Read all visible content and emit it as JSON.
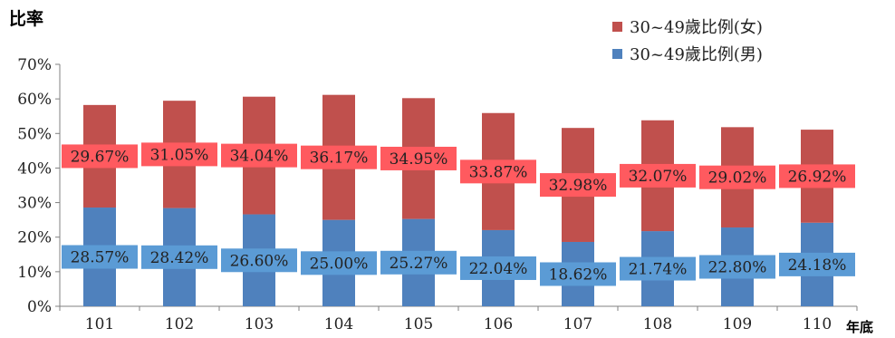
{
  "chart_data": {
    "type": "bar",
    "stacked": true,
    "categories": [
      "101",
      "102",
      "103",
      "104",
      "105",
      "106",
      "107",
      "108",
      "109",
      "110"
    ],
    "series": [
      {
        "name": "30~49歲比例(男)",
        "color": "#4f81bd",
        "label_bg": "#5b9bd5",
        "values": [
          28.57,
          28.42,
          26.6,
          25.0,
          25.27,
          22.04,
          18.62,
          21.74,
          22.8,
          24.18
        ],
        "labels": [
          "28.57%",
          "28.42%",
          "26.60%",
          "25.00%",
          "25.27%",
          "22.04%",
          "18.62%",
          "21.74%",
          "22.80%",
          "24.18%"
        ]
      },
      {
        "name": "30~49歲比例(女)",
        "color": "#c0504d",
        "label_bg": "#ff5a5f",
        "values": [
          29.67,
          31.05,
          34.04,
          36.17,
          34.95,
          33.87,
          32.98,
          32.07,
          29.02,
          26.92
        ],
        "labels": [
          "29.67%",
          "31.05%",
          "34.04%",
          "36.17%",
          "34.95%",
          "33.87%",
          "32.98%",
          "32.07%",
          "29.02%",
          "26.92%"
        ]
      }
    ],
    "ylabel": "比率",
    "xlabel": "年底",
    "ylim": [
      0,
      70
    ],
    "yticks": [
      "0%",
      "10%",
      "20%",
      "30%",
      "40%",
      "50%",
      "60%",
      "70%"
    ],
    "grid": false,
    "legend_position": "top-right"
  }
}
